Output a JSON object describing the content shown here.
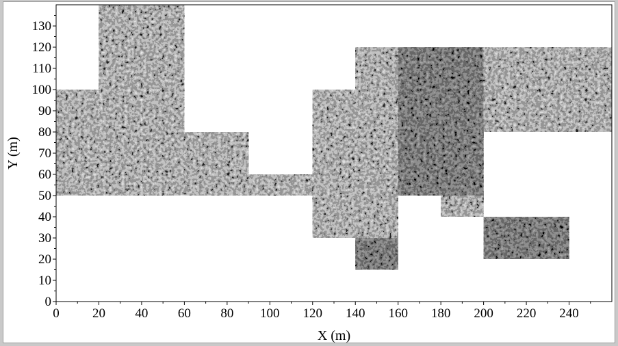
{
  "chart_data": {
    "type": "heatmap",
    "title": "",
    "xlabel": "X (m)",
    "ylabel": "Y (m)",
    "xlim": [
      0,
      260
    ],
    "ylim": [
      0,
      140
    ],
    "x_ticks": [
      0,
      20,
      40,
      60,
      80,
      100,
      120,
      140,
      160,
      180,
      200,
      220,
      240
    ],
    "y_ticks": [
      0,
      10,
      20,
      30,
      40,
      50,
      60,
      70,
      80,
      90,
      100,
      110,
      120,
      130
    ],
    "colormap": "grayscale",
    "background_color": "#ffffff",
    "survey_patches": [
      {
        "x": [
          0,
          20
        ],
        "y": [
          50,
          100
        ],
        "tone": "mid-gray"
      },
      {
        "x": [
          20,
          40
        ],
        "y": [
          50,
          140
        ],
        "tone": "mixed"
      },
      {
        "x": [
          40,
          60
        ],
        "y": [
          50,
          140
        ],
        "tone": "mixed"
      },
      {
        "x": [
          60,
          90
        ],
        "y": [
          50,
          80
        ],
        "tone": "mid-gray"
      },
      {
        "x": [
          90,
          120
        ],
        "y": [
          50,
          60
        ],
        "tone": "mid-gray"
      },
      {
        "x": [
          120,
          140
        ],
        "y": [
          30,
          100
        ],
        "tone": "mid-gray"
      },
      {
        "x": [
          140,
          160
        ],
        "y": [
          30,
          120
        ],
        "tone": "mixed"
      },
      {
        "x": [
          160,
          200
        ],
        "y": [
          50,
          120
        ],
        "tone": "dark"
      },
      {
        "x": [
          200,
          260
        ],
        "y": [
          80,
          120
        ],
        "tone": "mixed"
      },
      {
        "x": [
          140,
          160
        ],
        "y": [
          15,
          30
        ],
        "tone": "dark"
      },
      {
        "x": [
          180,
          200
        ],
        "y": [
          40,
          50
        ],
        "tone": "mixed"
      },
      {
        "x": [
          200,
          240
        ],
        "y": [
          20,
          40
        ],
        "tone": "dark"
      }
    ]
  }
}
